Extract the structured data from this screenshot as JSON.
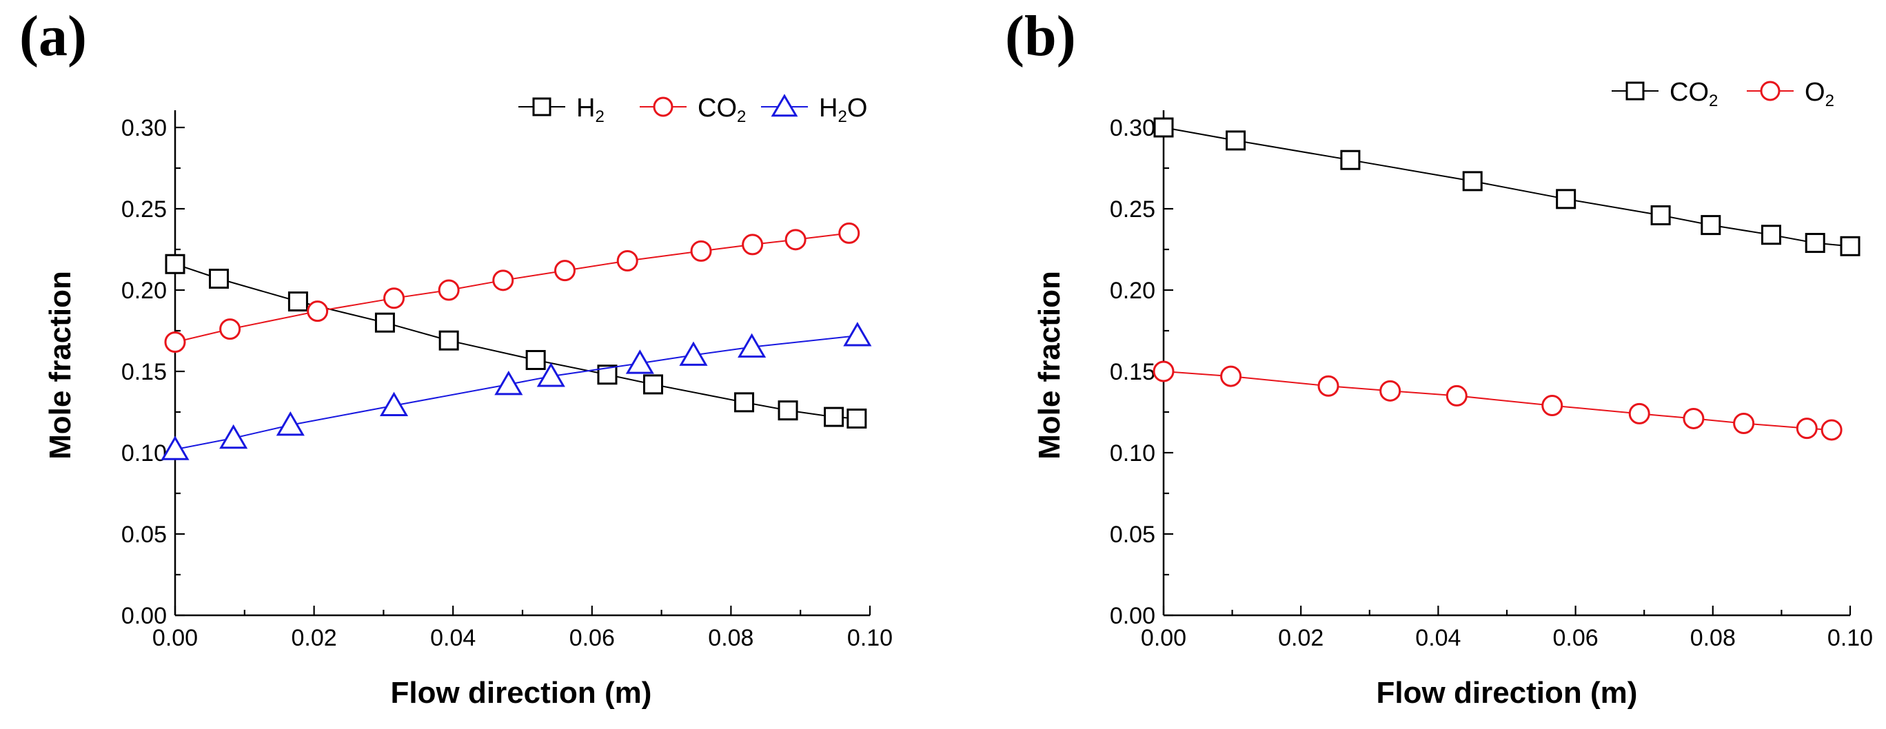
{
  "chart_data": [
    {
      "type": "line",
      "panel_label": "(a)",
      "xlabel": "Flow direction (m)",
      "ylabel": "Mole fraction",
      "xlim": [
        0.0,
        0.1
      ],
      "ylim": [
        0.0,
        0.3
      ],
      "xticks": [
        "0.00",
        "0.02",
        "0.04",
        "0.06",
        "0.08",
        "0.10"
      ],
      "yticks": [
        "0.00",
        "0.05",
        "0.10",
        "0.15",
        "0.20",
        "0.25",
        "0.30"
      ],
      "legend_position": "top-right",
      "series": [
        {
          "name": "H2",
          "label_main": "H",
          "label_sub": "2",
          "label_tail": "",
          "color": "#000000",
          "marker": "square",
          "x": [
            0.0,
            0.0063,
            0.0177,
            0.0302,
            0.0394,
            0.0519,
            0.0622,
            0.0688,
            0.0819,
            0.0882,
            0.0948,
            0.0981
          ],
          "y": [
            0.216,
            0.207,
            0.193,
            0.18,
            0.169,
            0.157,
            0.148,
            0.142,
            0.131,
            0.126,
            0.122,
            0.121
          ]
        },
        {
          "name": "CO2",
          "label_main": "CO",
          "label_sub": "2",
          "label_tail": "",
          "color": "#e8141b",
          "marker": "circle",
          "x": [
            0.0,
            0.0079,
            0.0205,
            0.0315,
            0.0394,
            0.0472,
            0.0561,
            0.0651,
            0.0757,
            0.0831,
            0.0893,
            0.097
          ],
          "y": [
            0.168,
            0.176,
            0.187,
            0.195,
            0.2,
            0.206,
            0.212,
            0.218,
            0.224,
            0.228,
            0.231,
            0.235
          ]
        },
        {
          "name": "H2O",
          "label_main": "H",
          "label_sub": "2",
          "label_tail": "O",
          "color": "#1818e0",
          "marker": "triangle",
          "x": [
            0.0,
            0.0084,
            0.0166,
            0.0315,
            0.048,
            0.0541,
            0.0669,
            0.0746,
            0.083,
            0.0982
          ],
          "y": [
            0.102,
            0.109,
            0.117,
            0.129,
            0.142,
            0.147,
            0.155,
            0.16,
            0.165,
            0.172
          ]
        }
      ]
    },
    {
      "type": "line",
      "panel_label": "(b)",
      "xlabel": "Flow direction (m)",
      "ylabel": "Mole fraction",
      "xlim": [
        0.0,
        0.1
      ],
      "ylim": [
        0.0,
        0.3
      ],
      "xticks": [
        "0.00",
        "0.02",
        "0.04",
        "0.06",
        "0.08",
        "0.10"
      ],
      "yticks": [
        "0.00",
        "0.05",
        "0.10",
        "0.15",
        "0.20",
        "0.25",
        "0.30"
      ],
      "legend_position": "top-right",
      "series": [
        {
          "name": "CO2",
          "label_main": "CO",
          "label_sub": "2",
          "label_tail": "",
          "color": "#000000",
          "marker": "square",
          "x": [
            0.0,
            0.0105,
            0.0272,
            0.045,
            0.0586,
            0.0724,
            0.0797,
            0.0885,
            0.0949,
            0.1
          ],
          "y": [
            0.3,
            0.292,
            0.28,
            0.267,
            0.256,
            0.246,
            0.24,
            0.234,
            0.229,
            0.227
          ]
        },
        {
          "name": "O2",
          "label_main": "O",
          "label_sub": "2",
          "label_tail": "",
          "color": "#e8141b",
          "marker": "circle",
          "x": [
            0.0,
            0.0098,
            0.024,
            0.033,
            0.0427,
            0.0566,
            0.0693,
            0.0772,
            0.0845,
            0.0937,
            0.0973
          ],
          "y": [
            0.15,
            0.147,
            0.141,
            0.138,
            0.135,
            0.129,
            0.124,
            0.121,
            0.118,
            0.115,
            0.114
          ]
        }
      ]
    }
  ]
}
